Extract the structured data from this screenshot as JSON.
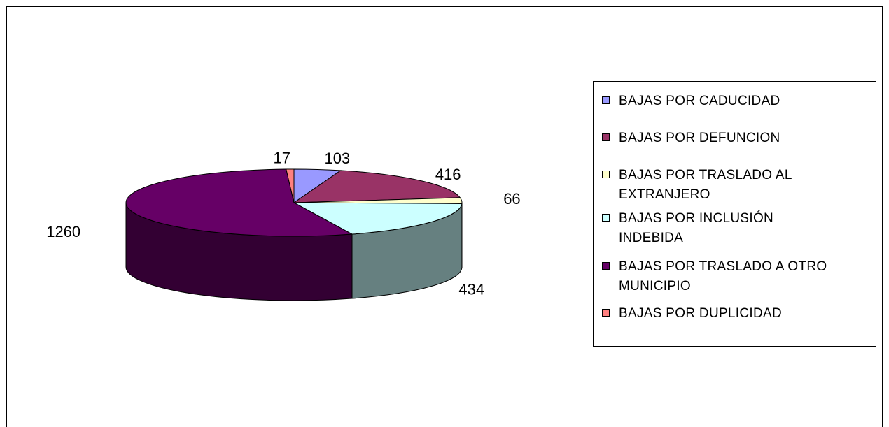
{
  "chart_data": {
    "type": "pie",
    "style": "3d",
    "title": "",
    "categories": [
      "BAJAS POR CADUCIDAD",
      "BAJAS POR DEFUNCION",
      "BAJAS  POR TRASLADO AL EXTRANJERO",
      "BAJAS POR INCLUSIÓN INDEBIDA",
      "BAJAS POR TRASLADO A OTRO MUNICIPIO",
      "BAJAS POR DUPLICIDAD"
    ],
    "values": [
      103,
      416,
      66,
      434,
      1260,
      17
    ],
    "data_labels": [
      "103",
      "416",
      "66",
      "434",
      "1260",
      "17"
    ],
    "colors": [
      "#9999ff",
      "#993366",
      "#ffffcc",
      "#ccffff",
      "#660066",
      "#ff8080"
    ],
    "legend_position": "right",
    "grid": false
  },
  "legend": {
    "items": [
      "BAJAS POR CADUCIDAD",
      "BAJAS POR DEFUNCION",
      "BAJAS  POR TRASLADO AL EXTRANJERO",
      "BAJAS POR INCLUSIÓN INDEBIDA",
      "BAJAS POR TRASLADO A OTRO MUNICIPIO",
      "BAJAS POR DUPLICIDAD"
    ]
  }
}
